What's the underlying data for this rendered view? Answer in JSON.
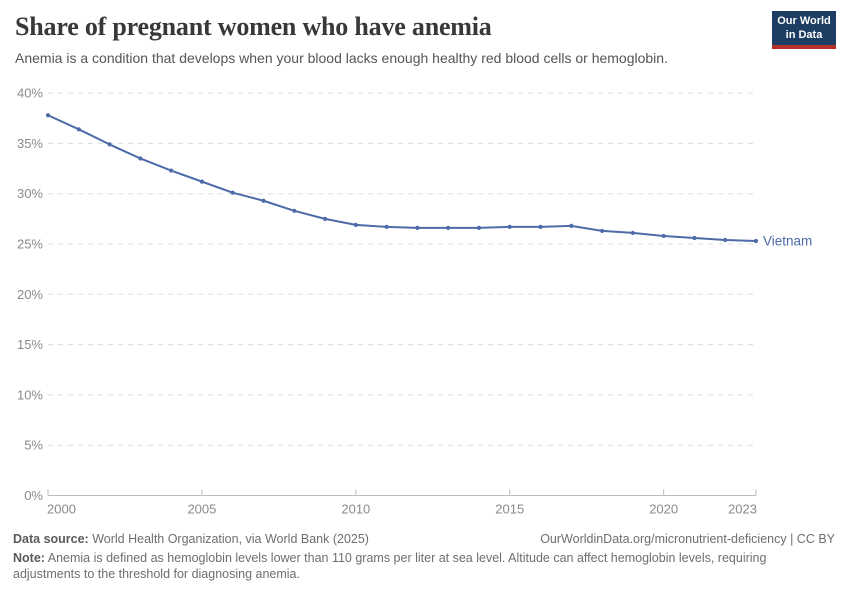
{
  "header": {
    "title": "Share of pregnant women who have anemia",
    "subtitle": "Anemia is a condition that develops when your blood lacks enough healthy red blood cells or hemoglobin.",
    "logo": {
      "line1": "Our World",
      "line2": "in Data",
      "bg_color": "#1d3d63",
      "bar_color": "#b5312c",
      "text_color": "#ffffff"
    }
  },
  "chart_data": {
    "type": "line",
    "title": "Share of pregnant women who have anemia",
    "x": [
      2000,
      2001,
      2002,
      2003,
      2004,
      2005,
      2006,
      2007,
      2008,
      2009,
      2010,
      2011,
      2012,
      2013,
      2014,
      2015,
      2016,
      2017,
      2018,
      2019,
      2020,
      2021,
      2022,
      2023
    ],
    "series": [
      {
        "name": "Vietnam",
        "color": "#4c6ba8",
        "values": [
          37.8,
          36.4,
          34.9,
          33.5,
          32.3,
          31.2,
          30.1,
          29.3,
          28.3,
          27.5,
          26.9,
          26.7,
          26.6,
          26.6,
          26.6,
          26.7,
          26.7,
          26.8,
          26.3,
          26.1,
          25.8,
          25.6,
          25.4,
          25.3
        ]
      }
    ],
    "xlabel": "",
    "ylabel": "",
    "ylim": [
      0,
      40
    ],
    "ytick_step": 5,
    "ytick_suffix": "%",
    "xticks": [
      2000,
      2005,
      2010,
      2015,
      2020,
      2023
    ],
    "grid": "horizontal-dashed",
    "legend": "end-of-line-label",
    "end_label": "Vietnam",
    "colors": {
      "gridline": "#dcdcdc",
      "axis": "#bdbdbd",
      "tick_label": "#8a8a8a"
    }
  },
  "footer": {
    "data_source_label": "Data source:",
    "data_source_text": "World Health Organization, via World Bank (2025)",
    "attribution": "OurWorldinData.org/micronutrient-deficiency | CC BY",
    "note_label": "Note:",
    "note_text": "Anemia is defined as hemoglobin levels lower than 110 grams per liter at sea level. Altitude can affect hemoglobin levels, requiring adjustments to the threshold for diagnosing anemia."
  }
}
